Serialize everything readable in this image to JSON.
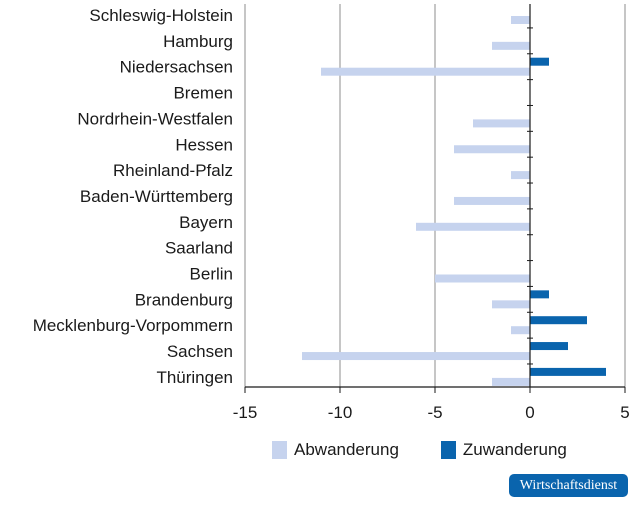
{
  "colors": {
    "abwanderung": "#c6d3ee",
    "zuwanderung": "#0a64ad",
    "grid": "#8c8c8c",
    "axis": "#1a1a1a",
    "badge": "#0a64ad"
  },
  "chart_data": {
    "type": "bar",
    "orientation": "horizontal",
    "categories": [
      "Schleswig-Holstein",
      "Hamburg",
      "Niedersachsen",
      "Bremen",
      "Nordrhein-Westfalen",
      "Hessen",
      "Rheinland-Pfalz",
      "Baden-Württemberg",
      "Bayern",
      "Saarland",
      "Berlin",
      "Brandenburg",
      "Mecklenburg-Vorpommern",
      "Sachsen",
      "Thüringen"
    ],
    "series": [
      {
        "name": "Abwanderung",
        "values": [
          -1,
          -2,
          -11,
          0,
          -3,
          -4,
          -1,
          -4,
          -6,
          0,
          -5,
          -2,
          -1,
          -12,
          -2
        ]
      },
      {
        "name": "Zuwanderung",
        "values": [
          0,
          0,
          1,
          0,
          0,
          0,
          0,
          0,
          0,
          0,
          0,
          1,
          3,
          2,
          4
        ]
      }
    ],
    "xlim": [
      -15,
      5
    ],
    "x_ticks": [
      "-15",
      "-10",
      "-5",
      "0",
      "5"
    ],
    "grid": "vertical",
    "legend_position": "bottom"
  },
  "legend": {
    "items": [
      "Abwanderung",
      "Zuwanderung"
    ]
  },
  "badge": {
    "text": "Wirtschaftsdienst"
  }
}
